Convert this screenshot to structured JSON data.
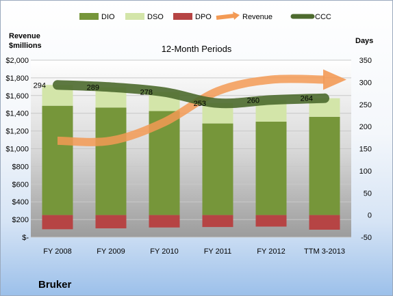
{
  "company": "Bruker",
  "chart_data": {
    "type": "bar",
    "title": "12-Month Periods",
    "left_axis_label": [
      "Revenue",
      "$millions"
    ],
    "right_axis_label": "Days",
    "categories": [
      "FY 2008",
      "FY 2009",
      "FY 2010",
      "FY 2011",
      "FY 2012",
      "TTM 3-2013"
    ],
    "left_ticks": [
      "$-",
      "$200",
      "$400",
      "$600",
      "$800",
      "$1,000",
      "$1,200",
      "$1,400",
      "$1,600",
      "$1,800",
      "$2,000"
    ],
    "right_ticks": [
      "-50",
      "0",
      "50",
      "100",
      "150",
      "200",
      "250",
      "300",
      "350"
    ],
    "left_ylim": [
      0,
      2000
    ],
    "right_ylim": [
      -50,
      350
    ],
    "legend": [
      "DIO",
      "DSO",
      "DPO",
      "Revenue",
      "CCC"
    ],
    "legend_position": "top",
    "colors": {
      "DIO": "#76963a",
      "DSO": "#d3e5a9",
      "DPO": "#b64444",
      "Revenue": "#f39a55",
      "CCC": "#4d6a2e"
    },
    "series": [
      {
        "name": "DIO",
        "axis": "right",
        "values": [
          247,
          243,
          235,
          207,
          211,
          222
        ]
      },
      {
        "name": "DSO",
        "axis": "right",
        "values": [
          47,
          46,
          43,
          46,
          49,
          42
        ]
      },
      {
        "name": "DPO",
        "axis": "right",
        "values": [
          -32,
          -30,
          -28,
          -27,
          -26,
          -33
        ]
      },
      {
        "name": "CCC",
        "axis": "right",
        "values": [
          294,
          289,
          278,
          253,
          260,
          264
        ],
        "labels": [
          "294",
          "289",
          "278",
          "253",
          "260",
          "264"
        ]
      },
      {
        "name": "Revenue",
        "axis": "left",
        "type": "trend-arrow",
        "values": [
          1090,
          1090,
          1300,
          1650,
          1780,
          1780
        ]
      }
    ]
  }
}
